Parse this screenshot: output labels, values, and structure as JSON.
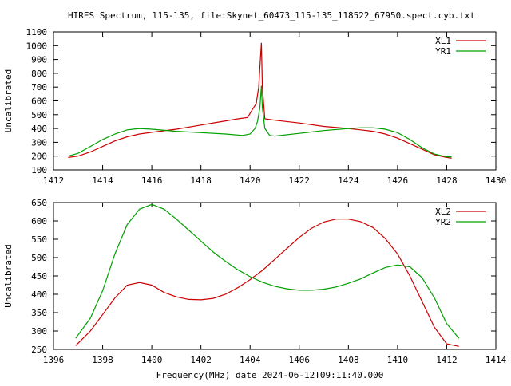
{
  "title": "HIRES Spectrum, l15-l35, file:Skynet_60473_l15-l35_118522_67950.spect.cyb.txt",
  "xlabel": "Frequency(MHz) date 2024-06-12T09:11:40.000",
  "chart_data": [
    {
      "type": "line",
      "ylabel": "Uncalibrated",
      "xlim": [
        1412,
        1430
      ],
      "ylim": [
        100,
        1100
      ],
      "xticks": [
        1412,
        1414,
        1416,
        1418,
        1420,
        1422,
        1424,
        1426,
        1428,
        1430
      ],
      "yticks": [
        100,
        200,
        300,
        400,
        500,
        600,
        700,
        800,
        900,
        1000,
        1100
      ],
      "legend_position": "top-right",
      "series": [
        {
          "name": "XL1",
          "color": "#cc0000",
          "points": [
            [
              1412.6,
              190
            ],
            [
              1413.0,
              200
            ],
            [
              1413.5,
              230
            ],
            [
              1414.0,
              270
            ],
            [
              1414.5,
              310
            ],
            [
              1415.0,
              340
            ],
            [
              1415.5,
              360
            ],
            [
              1416.0,
              372
            ],
            [
              1417.0,
              395
            ],
            [
              1418.0,
              425
            ],
            [
              1419.0,
              455
            ],
            [
              1419.5,
              470
            ],
            [
              1419.9,
              480
            ],
            [
              1420.1,
              540
            ],
            [
              1420.25,
              580
            ],
            [
              1420.35,
              700
            ],
            [
              1420.42,
              900
            ],
            [
              1420.46,
              1020
            ],
            [
              1420.5,
              700
            ],
            [
              1420.6,
              470
            ],
            [
              1421.0,
              460
            ],
            [
              1422.0,
              440
            ],
            [
              1423.0,
              415
            ],
            [
              1424.0,
              400
            ],
            [
              1424.5,
              390
            ],
            [
              1425.0,
              380
            ],
            [
              1425.5,
              360
            ],
            [
              1426.0,
              330
            ],
            [
              1426.5,
              290
            ],
            [
              1427.0,
              250
            ],
            [
              1427.5,
              210
            ],
            [
              1428.0,
              190
            ],
            [
              1428.2,
              185
            ]
          ]
        },
        {
          "name": "YR1",
          "color": "#00a000",
          "points": [
            [
              1412.6,
              200
            ],
            [
              1413.0,
              220
            ],
            [
              1413.5,
              270
            ],
            [
              1414.0,
              320
            ],
            [
              1414.5,
              360
            ],
            [
              1415.0,
              390
            ],
            [
              1415.5,
              400
            ],
            [
              1416.0,
              395
            ],
            [
              1417.0,
              380
            ],
            [
              1418.0,
              370
            ],
            [
              1419.0,
              360
            ],
            [
              1419.7,
              350
            ],
            [
              1420.0,
              360
            ],
            [
              1420.2,
              400
            ],
            [
              1420.3,
              450
            ],
            [
              1420.4,
              550
            ],
            [
              1420.46,
              710
            ],
            [
              1420.5,
              550
            ],
            [
              1420.6,
              400
            ],
            [
              1420.8,
              350
            ],
            [
              1421.0,
              345
            ],
            [
              1422.0,
              365
            ],
            [
              1423.0,
              385
            ],
            [
              1424.0,
              400
            ],
            [
              1424.5,
              405
            ],
            [
              1425.0,
              405
            ],
            [
              1425.5,
              395
            ],
            [
              1426.0,
              370
            ],
            [
              1426.5,
              320
            ],
            [
              1427.0,
              260
            ],
            [
              1427.5,
              215
            ],
            [
              1428.0,
              195
            ],
            [
              1428.2,
              195
            ]
          ]
        }
      ]
    },
    {
      "type": "line",
      "ylabel": "Uncalibrated",
      "xlim": [
        1396,
        1414
      ],
      "ylim": [
        250,
        650
      ],
      "xticks": [
        1396,
        1398,
        1400,
        1402,
        1404,
        1406,
        1408,
        1410,
        1412,
        1414
      ],
      "yticks": [
        250,
        300,
        350,
        400,
        450,
        500,
        550,
        600,
        650
      ],
      "legend_position": "top-right",
      "series": [
        {
          "name": "XL2",
          "color": "#cc0000",
          "points": [
            [
              1396.9,
              260
            ],
            [
              1397.5,
              300
            ],
            [
              1398.0,
              345
            ],
            [
              1398.5,
              390
            ],
            [
              1399.0,
              425
            ],
            [
              1399.5,
              432
            ],
            [
              1400.0,
              425
            ],
            [
              1400.5,
              405
            ],
            [
              1401.0,
              393
            ],
            [
              1401.5,
              386
            ],
            [
              1402.0,
              385
            ],
            [
              1402.5,
              389
            ],
            [
              1403.0,
              400
            ],
            [
              1403.5,
              418
            ],
            [
              1404.0,
              440
            ],
            [
              1404.5,
              465
            ],
            [
              1405.0,
              495
            ],
            [
              1405.5,
              525
            ],
            [
              1406.0,
              555
            ],
            [
              1406.5,
              580
            ],
            [
              1407.0,
              597
            ],
            [
              1407.5,
              605
            ],
            [
              1408.0,
              605
            ],
            [
              1408.5,
              598
            ],
            [
              1409.0,
              582
            ],
            [
              1409.5,
              552
            ],
            [
              1410.0,
              510
            ],
            [
              1410.5,
              450
            ],
            [
              1411.0,
              380
            ],
            [
              1411.5,
              310
            ],
            [
              1412.0,
              265
            ],
            [
              1412.5,
              258
            ]
          ]
        },
        {
          "name": "YR2",
          "color": "#00a000",
          "points": [
            [
              1396.9,
              280
            ],
            [
              1397.5,
              335
            ],
            [
              1398.0,
              410
            ],
            [
              1398.5,
              510
            ],
            [
              1399.0,
              590
            ],
            [
              1399.5,
              632
            ],
            [
              1400.0,
              645
            ],
            [
              1400.5,
              632
            ],
            [
              1401.0,
              605
            ],
            [
              1401.5,
              575
            ],
            [
              1402.0,
              545
            ],
            [
              1402.5,
              515
            ],
            [
              1403.0,
              490
            ],
            [
              1403.5,
              467
            ],
            [
              1404.0,
              448
            ],
            [
              1404.5,
              433
            ],
            [
              1405.0,
              422
            ],
            [
              1405.5,
              415
            ],
            [
              1406.0,
              411
            ],
            [
              1406.5,
              411
            ],
            [
              1407.0,
              414
            ],
            [
              1407.5,
              420
            ],
            [
              1408.0,
              430
            ],
            [
              1408.5,
              442
            ],
            [
              1409.0,
              458
            ],
            [
              1409.5,
              473
            ],
            [
              1410.0,
              480
            ],
            [
              1410.5,
              475
            ],
            [
              1411.0,
              445
            ],
            [
              1411.5,
              390
            ],
            [
              1412.0,
              320
            ],
            [
              1412.5,
              280
            ]
          ]
        }
      ]
    }
  ]
}
